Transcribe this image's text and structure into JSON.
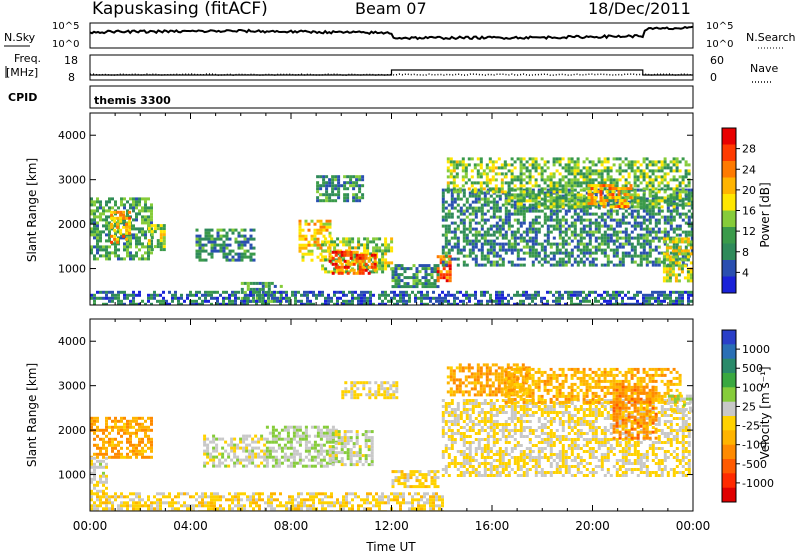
{
  "header": {
    "station": "Kapuskasing (fitACF)",
    "beam": "Beam 07",
    "date": "18/Dec/2011"
  },
  "panels": {
    "nsky_label": "N.Sky",
    "nsky_ticks": [
      "10^5",
      "10^0"
    ],
    "nsearch_label": "N.Search",
    "nsearch_ticks": [
      "10^5",
      "10^0"
    ],
    "freq_label_line1": "Freq.",
    "freq_label_line2": "[MHz]",
    "freq_ticks": [
      "18",
      "8"
    ],
    "nave_label": "Nave",
    "nave_ticks": [
      "60",
      "0"
    ],
    "cpid_label": "CPID",
    "cpid_value": "themis 3300"
  },
  "colorbars": {
    "power": {
      "title": "Power [dB]",
      "labels": [
        "28",
        "24",
        "20",
        "16",
        "12",
        "8",
        "4"
      ],
      "colors": [
        "#e80000",
        "#ff3a00",
        "#ff7a00",
        "#ffb400",
        "#ffe600",
        "#86cc3a",
        "#3a9a4a",
        "#2f8a5a",
        "#2a4fb0",
        "#1a22d8"
      ]
    },
    "velocity": {
      "title": "Velocity [m s⁻¹]",
      "labels": [
        "1000",
        "500",
        "100",
        "25",
        "-25",
        "-100",
        "-500",
        "-1000"
      ],
      "colors": [
        "#2a3fc8",
        "#2a6fb5",
        "#2a8a6a",
        "#3aa840",
        "#86cc3a",
        "#c8c8c8",
        "#ffd200",
        "#ffb400",
        "#ff8a00",
        "#ff5a00",
        "#ff2a00",
        "#e00000"
      ]
    }
  },
  "chart_data": [
    {
      "type": "heatmap",
      "panel": "power",
      "xlabel": "Time UT",
      "ylabel": "Slant Range [km]",
      "x_ticks": [
        "00:00",
        "04:00",
        "08:00",
        "12:00",
        "16:00",
        "20:00",
        "00:00"
      ],
      "y_ticks": [
        1000,
        2000,
        3000,
        4000
      ],
      "xlim_hours": [
        0,
        24
      ],
      "ylim_km": [
        180,
        4500
      ],
      "colorscale_db": [
        0,
        30
      ],
      "regions": [
        {
          "t": [
            0.0,
            2.4
          ],
          "r": [
            1200,
            2600
          ],
          "db": 10
        },
        {
          "t": [
            0.8,
            1.6
          ],
          "r": [
            1600,
            2300
          ],
          "db": 20
        },
        {
          "t": [
            2.3,
            3.0
          ],
          "r": [
            1400,
            2000
          ],
          "db": 14
        },
        {
          "t": [
            4.2,
            6.5
          ],
          "r": [
            1200,
            1900
          ],
          "db": 8
        },
        {
          "t": [
            6.0,
            7.6
          ],
          "r": [
            280,
            700
          ],
          "db": 10
        },
        {
          "t": [
            8.3,
            9.6
          ],
          "r": [
            1200,
            2100
          ],
          "db": 18
        },
        {
          "t": [
            9.2,
            12.0
          ],
          "r": [
            900,
            1700
          ],
          "db": 14
        },
        {
          "t": [
            9.5,
            11.3
          ],
          "r": [
            900,
            1400
          ],
          "db": 24
        },
        {
          "t": [
            9.0,
            10.8
          ],
          "r": [
            2500,
            3100
          ],
          "db": 8
        },
        {
          "t": [
            12.0,
            13.8
          ],
          "r": [
            600,
            1100
          ],
          "db": 8
        },
        {
          "t": [
            13.8,
            14.3
          ],
          "r": [
            700,
            1300
          ],
          "db": 24
        },
        {
          "t": [
            14.0,
            24.0
          ],
          "r": [
            1100,
            2800
          ],
          "db": 8
        },
        {
          "t": [
            14.2,
            16.5
          ],
          "r": [
            2700,
            3500
          ],
          "db": 14
        },
        {
          "t": [
            16.5,
            23.8
          ],
          "r": [
            2400,
            3500
          ],
          "db": 12
        },
        {
          "t": [
            19.8,
            21.5
          ],
          "r": [
            2400,
            2900
          ],
          "db": 20
        },
        {
          "t": [
            22.8,
            24.0
          ],
          "r": [
            700,
            1700
          ],
          "db": 16
        },
        {
          "t": [
            0.0,
            24.0
          ],
          "r": [
            180,
            500
          ],
          "db": 6
        }
      ]
    },
    {
      "type": "heatmap",
      "panel": "velocity",
      "xlabel": "Time UT",
      "ylabel": "Slant Range [km]",
      "x_ticks": [
        "00:00",
        "04:00",
        "08:00",
        "12:00",
        "16:00",
        "20:00",
        "00:00"
      ],
      "y_ticks": [
        1000,
        2000,
        3000,
        4000
      ],
      "xlim_hours": [
        0,
        24
      ],
      "ylim_km": [
        180,
        4500
      ],
      "colorscale_ms": [
        -1000,
        1000
      ],
      "regions": [
        {
          "t": [
            0.0,
            2.4
          ],
          "r": [
            1400,
            2300
          ],
          "v": -300
        },
        {
          "t": [
            0.0,
            0.6
          ],
          "r": [
            600,
            1400
          ],
          "v": 50
        },
        {
          "t": [
            4.5,
            7.0
          ],
          "r": [
            1200,
            1900
          ],
          "v": 80
        },
        {
          "t": [
            7.0,
            9.8
          ],
          "r": [
            1200,
            2100
          ],
          "v": 150
        },
        {
          "t": [
            9.5,
            11.2
          ],
          "r": [
            1200,
            2000
          ],
          "v": 90
        },
        {
          "t": [
            10.0,
            12.2
          ],
          "r": [
            2700,
            3100
          ],
          "v": 0
        },
        {
          "t": [
            12.0,
            13.8
          ],
          "r": [
            700,
            1100
          ],
          "v": -80
        },
        {
          "t": [
            0.0,
            14.0
          ],
          "r": [
            180,
            600
          ],
          "v": -60
        },
        {
          "t": [
            14.0,
            23.8
          ],
          "r": [
            1000,
            2700
          ],
          "v": 0
        },
        {
          "t": [
            14.2,
            17.5
          ],
          "r": [
            2800,
            3500
          ],
          "v": -300
        },
        {
          "t": [
            16.5,
            23.5
          ],
          "r": [
            2600,
            3400
          ],
          "v": -250
        },
        {
          "t": [
            20.8,
            22.5
          ],
          "r": [
            1800,
            3000
          ],
          "v": -400
        },
        {
          "t": [
            23.0,
            24.0
          ],
          "r": [
            2400,
            2800
          ],
          "v": 120
        }
      ]
    },
    {
      "type": "line",
      "panel": "nsky",
      "x_hours": [
        0,
        6,
        12,
        12.1,
        18,
        22,
        22.1,
        24
      ],
      "values_log10": [
        3.2,
        3.4,
        3.0,
        2.0,
        2.1,
        2.4,
        3.8,
        4.0
      ]
    },
    {
      "type": "line",
      "panel": "freq-nave",
      "series": [
        {
          "name": "Freq.",
          "x_hours": [
            0,
            12,
            12,
            22,
            22,
            24
          ],
          "values": [
            10,
            10,
            12,
            12,
            10,
            10
          ]
        },
        {
          "name": "Nave",
          "x_hours": [
            0,
            24
          ],
          "values": [
            13,
            13
          ]
        }
      ]
    }
  ]
}
